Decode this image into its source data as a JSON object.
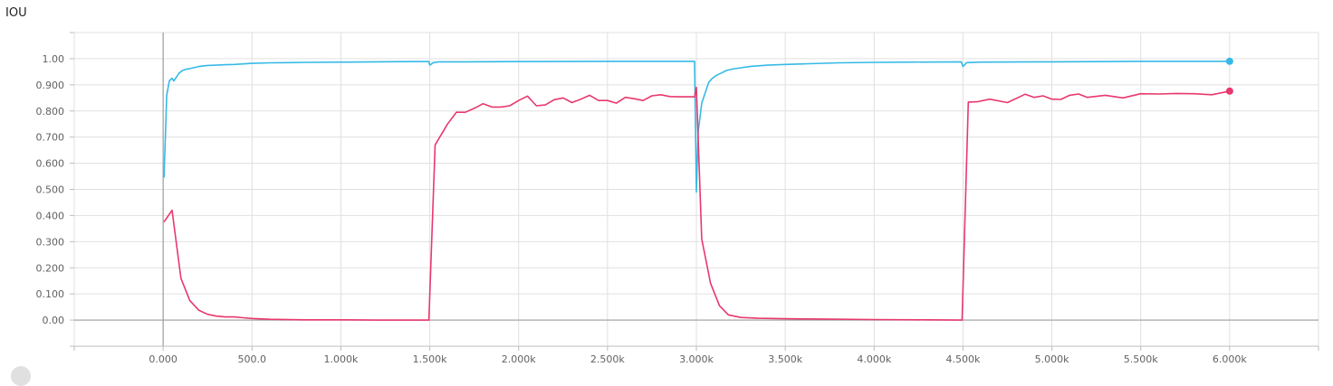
{
  "chart_data": {
    "type": "line",
    "title": "IOU",
    "xlabel": "",
    "ylabel": "",
    "xlim": [
      -500,
      6500
    ],
    "ylim": [
      -0.1,
      1.1
    ],
    "grid": true,
    "x_ticks": [
      0,
      500,
      1000,
      1500,
      2000,
      2500,
      3000,
      3500,
      4000,
      4500,
      5000,
      5500,
      6000
    ],
    "x_tick_labels": [
      "0.000",
      "500.0",
      "1.000k",
      "1.500k",
      "2.000k",
      "2.500k",
      "3.000k",
      "3.500k",
      "4.000k",
      "4.500k",
      "5.000k",
      "5.500k",
      "6.000k"
    ],
    "y_ticks": [
      0,
      0.1,
      0.2,
      0.3,
      0.4,
      0.5,
      0.6,
      0.7,
      0.8,
      0.9,
      1.0
    ],
    "y_tick_labels": [
      "0.00",
      "0.100",
      "0.200",
      "0.300",
      "0.400",
      "0.500",
      "0.600",
      "0.700",
      "0.800",
      "0.900",
      "1.00"
    ],
    "series": [
      {
        "color": "#36b9e6",
        "x": [
          5,
          20,
          35,
          50,
          60,
          75,
          90,
          110,
          130,
          150,
          170,
          200,
          250,
          300,
          350,
          400,
          450,
          500,
          600,
          700,
          800,
          1000,
          1200,
          1400,
          1495,
          1500,
          1520,
          1550,
          1700,
          2000,
          2500,
          2800,
          2990,
          3000,
          3010,
          3030,
          3050,
          3070,
          3090,
          3110,
          3140,
          3170,
          3200,
          3250,
          3300,
          3400,
          3500,
          3600,
          3800,
          4000,
          4200,
          4490,
          4500,
          4520,
          4600,
          5000,
          5500,
          6000
        ],
        "y": [
          0.545,
          0.86,
          0.915,
          0.925,
          0.915,
          0.93,
          0.945,
          0.955,
          0.96,
          0.962,
          0.965,
          0.97,
          0.974,
          0.975,
          0.977,
          0.978,
          0.98,
          0.982,
          0.984,
          0.985,
          0.986,
          0.987,
          0.988,
          0.989,
          0.989,
          0.975,
          0.985,
          0.988,
          0.988,
          0.989,
          0.99,
          0.99,
          0.99,
          0.49,
          0.72,
          0.83,
          0.87,
          0.91,
          0.925,
          0.935,
          0.945,
          0.955,
          0.96,
          0.965,
          0.97,
          0.975,
          0.978,
          0.98,
          0.984,
          0.986,
          0.987,
          0.988,
          0.97,
          0.985,
          0.987,
          0.988,
          0.99,
          0.99
        ]
      },
      {
        "color": "#e8386d",
        "x": [
          5,
          50,
          100,
          150,
          200,
          250,
          300,
          350,
          400,
          450,
          500,
          600,
          800,
          1000,
          1200,
          1400,
          1495,
          1530,
          1600,
          1650,
          1700,
          1750,
          1800,
          1850,
          1900,
          1950,
          2000,
          2050,
          2100,
          2150,
          2200,
          2250,
          2300,
          2350,
          2400,
          2450,
          2500,
          2550,
          2600,
          2650,
          2700,
          2750,
          2800,
          2850,
          2900,
          2990,
          3000,
          3030,
          3080,
          3130,
          3180,
          3250,
          3350,
          3500,
          3700,
          4000,
          4300,
          4495,
          4530,
          4580,
          4650,
          4750,
          4850,
          4900,
          4950,
          5000,
          5050,
          5100,
          5150,
          5200,
          5300,
          5400,
          5500,
          5600,
          5700,
          5800,
          5900,
          6000
        ],
        "y": [
          0.375,
          0.42,
          0.16,
          0.075,
          0.038,
          0.022,
          0.015,
          0.012,
          0.012,
          0.009,
          0.006,
          0.003,
          0.001,
          0.001,
          0.0,
          0.0,
          0.0,
          0.67,
          0.75,
          0.795,
          0.795,
          0.81,
          0.828,
          0.815,
          0.815,
          0.82,
          0.84,
          0.857,
          0.82,
          0.823,
          0.843,
          0.85,
          0.832,
          0.845,
          0.86,
          0.84,
          0.84,
          0.83,
          0.852,
          0.847,
          0.84,
          0.858,
          0.862,
          0.855,
          0.854,
          0.854,
          0.89,
          0.31,
          0.14,
          0.055,
          0.02,
          0.01,
          0.007,
          0.005,
          0.004,
          0.002,
          0.001,
          0.0,
          0.834,
          0.835,
          0.845,
          0.832,
          0.864,
          0.852,
          0.858,
          0.845,
          0.844,
          0.86,
          0.865,
          0.852,
          0.86,
          0.85,
          0.866,
          0.865,
          0.867,
          0.866,
          0.862,
          0.876
        ]
      }
    ]
  }
}
